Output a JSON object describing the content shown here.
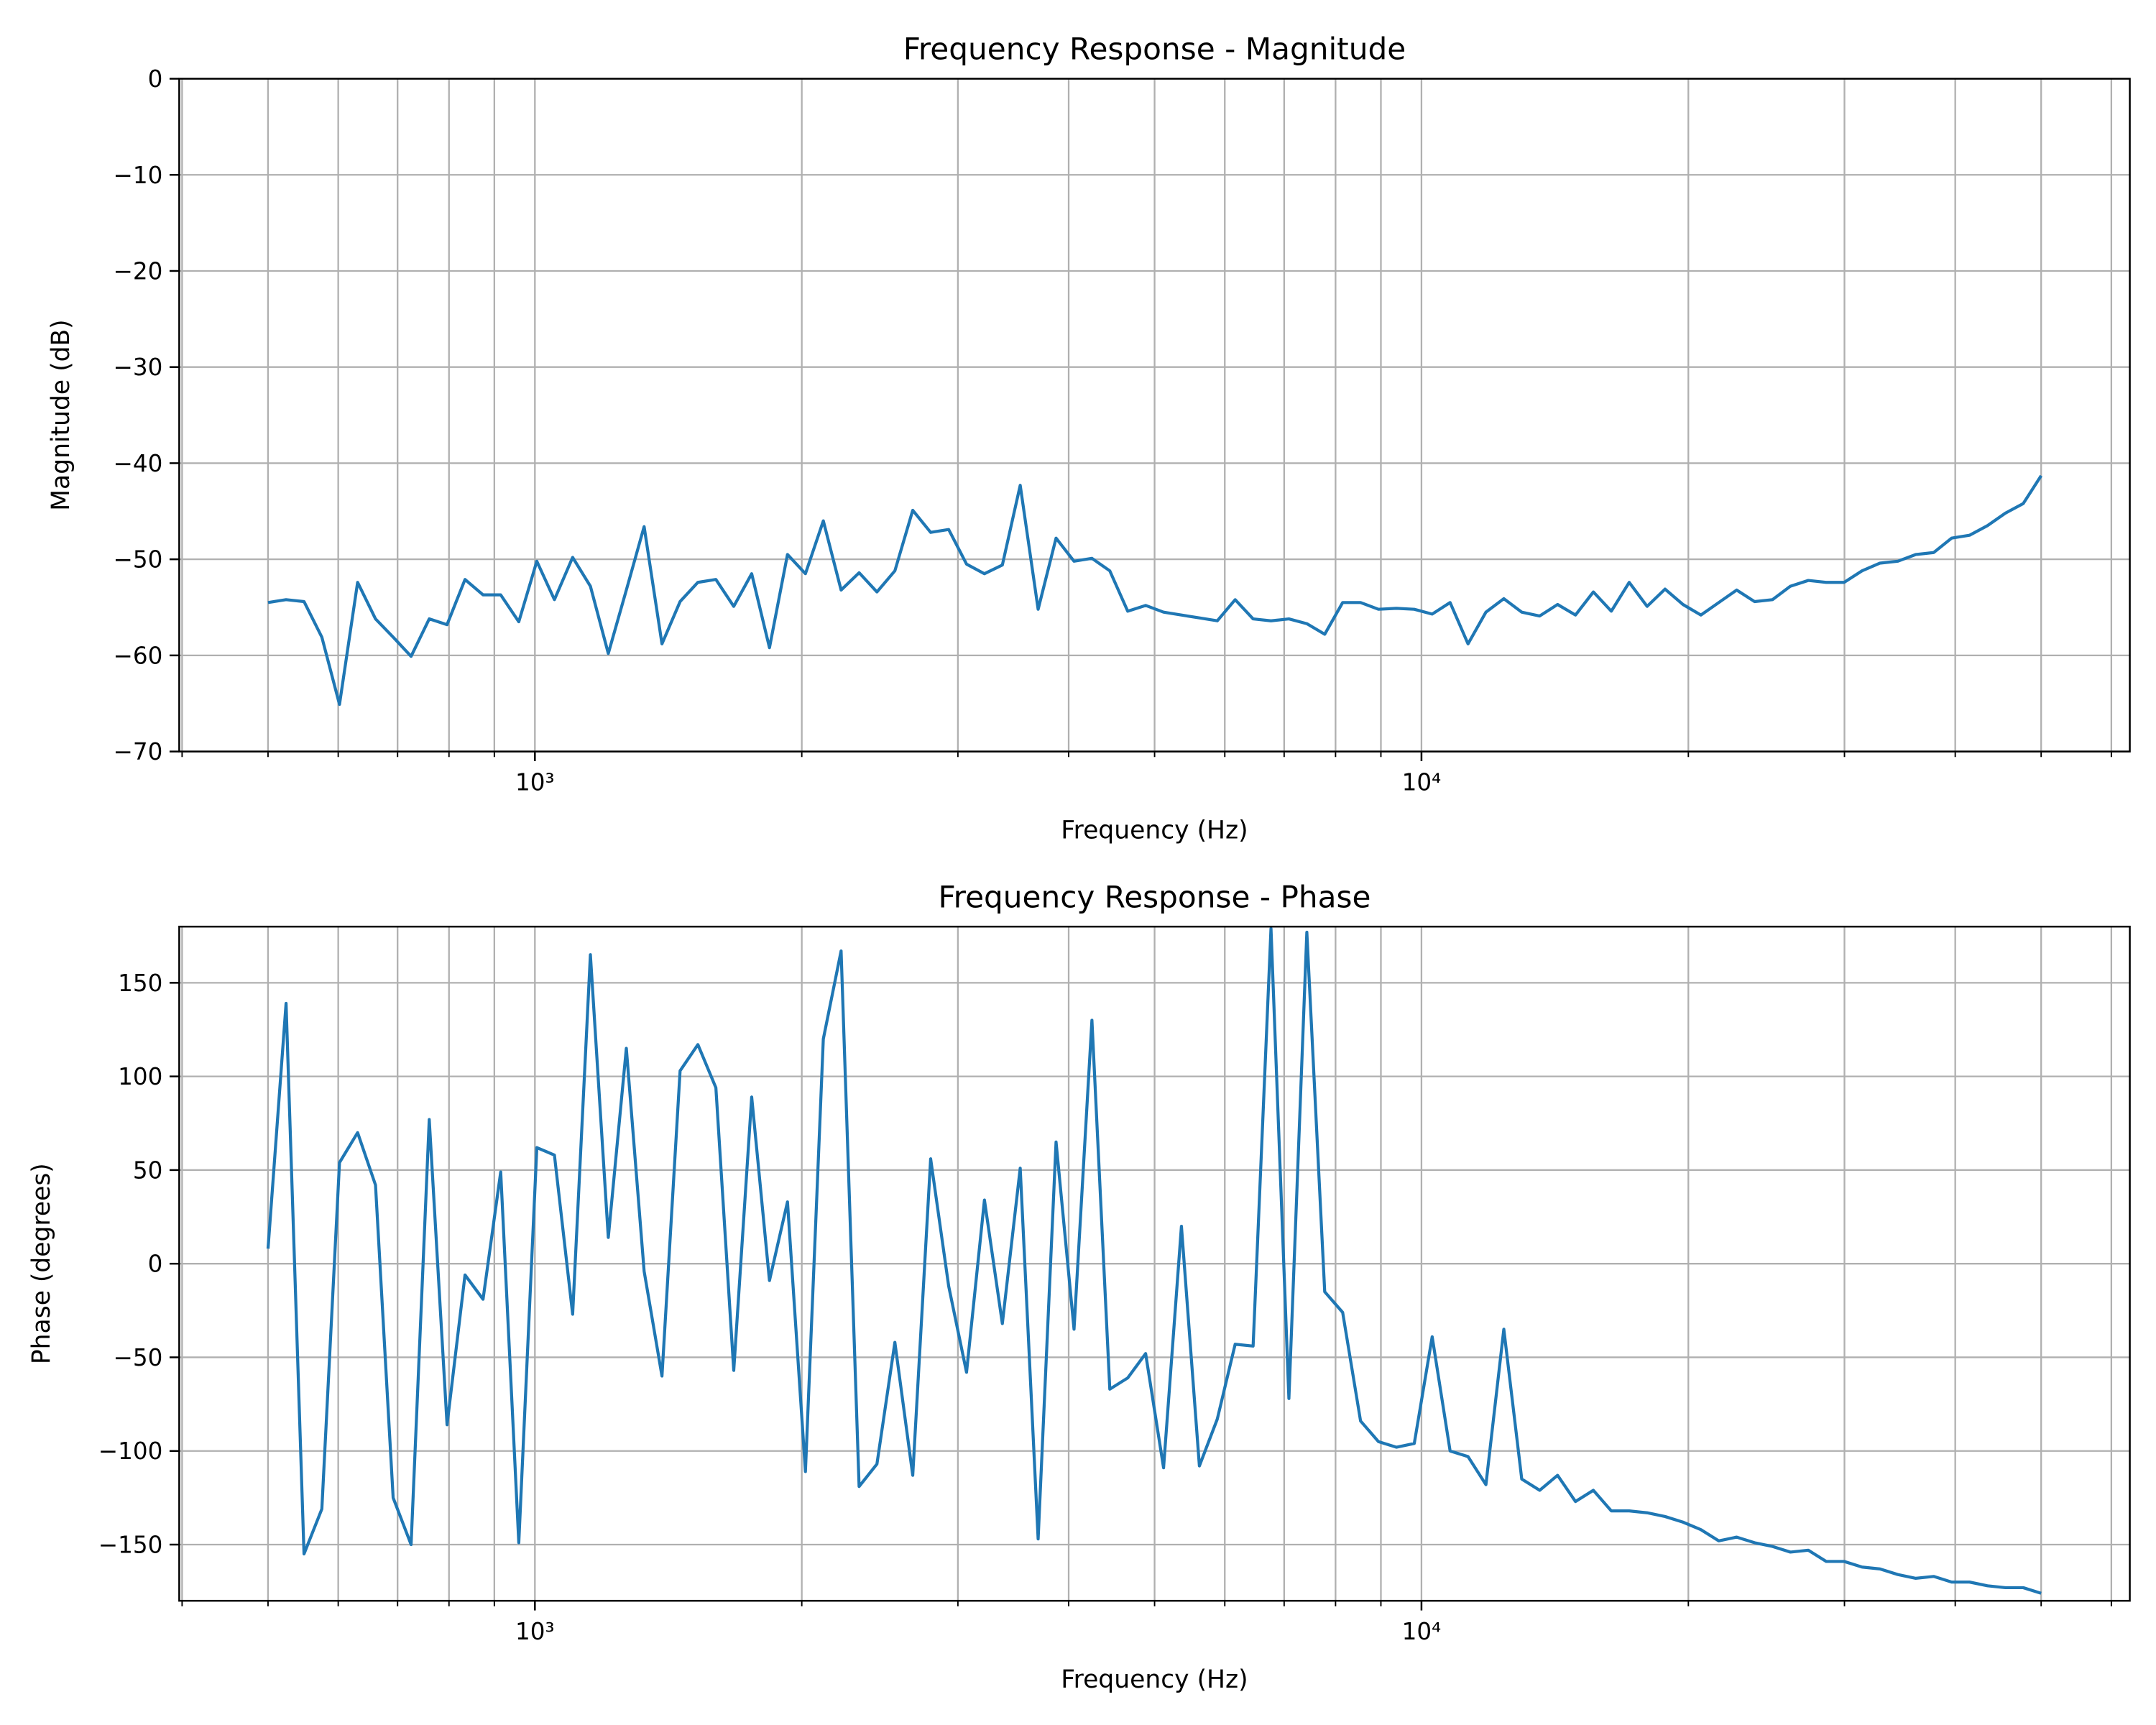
{
  "chart_data": [
    {
      "type": "line",
      "title": "Frequency Response - Magnitude",
      "xlabel": "Frequency (Hz)",
      "ylabel": "Magnitude (dB)",
      "xscale": "log",
      "grid": true,
      "color": "#1f77b4",
      "x": [
        500,
        524,
        549,
        575,
        602,
        631,
        661,
        692,
        725,
        760,
        796,
        834,
        874,
        915,
        959,
        1005,
        1052,
        1103,
        1155,
        1210,
        1268,
        1328,
        1391,
        1458,
        1527,
        1600,
        1676,
        1756,
        1839,
        1927,
        2019,
        2115,
        2215,
        2321,
        2431,
        2547,
        2668,
        2795,
        2929,
        3068,
        3214,
        3367,
        3527,
        3695,
        3871,
        4056,
        4249,
        4451,
        4663,
        4885,
        5118,
        5361,
        5617,
        5884,
        6164,
        6458,
        6765,
        7087,
        7425,
        7778,
        8149,
        8537,
        8943,
        9369,
        9815,
        10282,
        10772,
        11285,
        11822,
        12385,
        12975,
        13593,
        14240,
        14918,
        15628,
        16373,
        17152,
        17969,
        18824,
        19721,
        20660,
        21644,
        22674,
        23754,
        24885,
        26070,
        27311,
        28612,
        29974,
        31401,
        32897,
        34463,
        36104,
        37823,
        39624,
        41510,
        43487,
        45558,
        47727,
        50000
      ],
      "values": [
        -54.5,
        -54.2,
        -54.4,
        -58.1,
        -65.1,
        -52.4,
        -56.2,
        -58.1,
        -60.1,
        -56.2,
        -56.8,
        -52.1,
        -53.7,
        -53.7,
        -56.5,
        -50.2,
        -54.2,
        -49.8,
        -52.8,
        -59.8,
        -53.2,
        -46.6,
        -58.8,
        -54.4,
        -52.4,
        -52.1,
        -54.9,
        -51.5,
        -59.2,
        -49.5,
        -51.5,
        -46.0,
        -53.2,
        -51.4,
        -53.4,
        -51.2,
        -44.9,
        -47.2,
        -46.9,
        -50.5,
        -51.5,
        -50.6,
        -42.3,
        -55.2,
        -47.8,
        -50.2,
        -49.9,
        -51.2,
        -55.4,
        -54.8,
        -55.5,
        -55.8,
        -56.1,
        -56.4,
        -54.2,
        -56.2,
        -56.4,
        -56.2,
        -56.7,
        -57.8,
        -54.5,
        -54.5,
        -55.2,
        -55.1,
        -55.2,
        -55.7,
        -54.5,
        -58.8,
        -55.5,
        -54.1,
        -55.5,
        -55.9,
        -54.7,
        -55.8,
        -53.4,
        -55.4,
        -52.4,
        -54.9,
        -53.1,
        -54.7,
        -55.8,
        -54.5,
        -53.2,
        -54.4,
        -54.2,
        -52.8,
        -52.2,
        -52.4,
        -52.4,
        -51.2,
        -50.4,
        -50.2,
        -49.5,
        -49.3,
        -47.8,
        -47.5,
        -46.5,
        -45.2,
        -44.2,
        -41.3
      ],
      "xlim": [
        397,
        62946
      ],
      "xticks": [
        {
          "value": 1000,
          "label": "10³"
        },
        {
          "value": 10000,
          "label": "10⁴"
        }
      ],
      "xminorticks": [
        400,
        500,
        600,
        700,
        800,
        900,
        2000,
        3000,
        4000,
        5000,
        6000,
        7000,
        8000,
        9000,
        20000,
        30000,
        40000,
        50000,
        60000
      ],
      "ylim": [
        -70,
        0
      ],
      "yticks": [
        0,
        {
          "value": -10,
          "label": "−10"
        },
        {
          "value": -20,
          "label": "−20"
        },
        {
          "value": -30,
          "label": "−30"
        },
        {
          "value": -40,
          "label": "−40"
        },
        {
          "value": -50,
          "label": "−50"
        },
        {
          "value": -60,
          "label": "−60"
        },
        {
          "value": -70,
          "label": "−70"
        }
      ]
    },
    {
      "type": "line",
      "title": "Frequency Response - Phase",
      "xlabel": "Frequency (Hz)",
      "ylabel": "Phase (degrees)",
      "xscale": "log",
      "grid": true,
      "color": "#1f77b4",
      "x": [
        500,
        524,
        549,
        575,
        602,
        631,
        661,
        692,
        725,
        760,
        796,
        834,
        874,
        915,
        959,
        1005,
        1052,
        1103,
        1155,
        1210,
        1268,
        1328,
        1391,
        1458,
        1527,
        1600,
        1676,
        1756,
        1839,
        1927,
        2019,
        2115,
        2215,
        2321,
        2431,
        2547,
        2668,
        2795,
        2929,
        3068,
        3214,
        3367,
        3527,
        3695,
        3871,
        4056,
        4249,
        4451,
        4663,
        4885,
        5118,
        5361,
        5617,
        5884,
        6164,
        6458,
        6765,
        7087,
        7425,
        7778,
        8149,
        8537,
        8943,
        9369,
        9815,
        10282,
        10772,
        11285,
        11822,
        12385,
        12975,
        13593,
        14240,
        14918,
        15628,
        16373,
        17152,
        17969,
        18824,
        19721,
        20660,
        21644,
        22674,
        23754,
        24885,
        26070,
        27311,
        28612,
        29974,
        31401,
        32897,
        34463,
        36104,
        37823,
        39624,
        41510,
        43487,
        45558,
        47727,
        50000
      ],
      "values": [
        8,
        139,
        -155,
        -131,
        54,
        70,
        42,
        -125,
        -150,
        77,
        -86,
        -6,
        -19,
        49,
        -149,
        62,
        58,
        -27,
        165,
        14,
        115,
        -4,
        -60,
        103,
        117,
        94,
        -57,
        89,
        -9,
        33,
        -111,
        120,
        167,
        -119,
        -107,
        -42,
        -113,
        56,
        -12,
        -58,
        34,
        -32,
        51,
        -147,
        65,
        -35,
        130,
        -67,
        -61,
        -48,
        -109,
        20,
        -108,
        -83,
        -43,
        -44,
        179,
        -72,
        177,
        -15,
        -26,
        -84,
        -95,
        -98,
        -96,
        -39,
        -100,
        -103,
        -118,
        -35,
        -115,
        -121,
        -113,
        -127,
        -121,
        -132,
        -132,
        -133,
        -135,
        -138,
        -142,
        -148,
        -146,
        -149,
        -151,
        -154,
        -153,
        -159,
        -159,
        -162,
        -163,
        -166,
        -168,
        -167,
        -170,
        -170,
        -172,
        -173,
        -173,
        -176
      ],
      "xlim": [
        397,
        62946
      ],
      "xticks": [
        {
          "value": 1000,
          "label": "10³"
        },
        {
          "value": 10000,
          "label": "10⁴"
        }
      ],
      "xminorticks": [
        400,
        500,
        600,
        700,
        800,
        900,
        2000,
        3000,
        4000,
        5000,
        6000,
        7000,
        8000,
        9000,
        20000,
        30000,
        40000,
        50000,
        60000
      ],
      "ylim": [
        -180,
        180
      ],
      "yticks": [
        {
          "value": -150,
          "label": "−150"
        },
        {
          "value": -100,
          "label": "−100"
        },
        {
          "value": -50,
          "label": "−50"
        },
        0,
        50,
        100,
        150
      ]
    }
  ]
}
